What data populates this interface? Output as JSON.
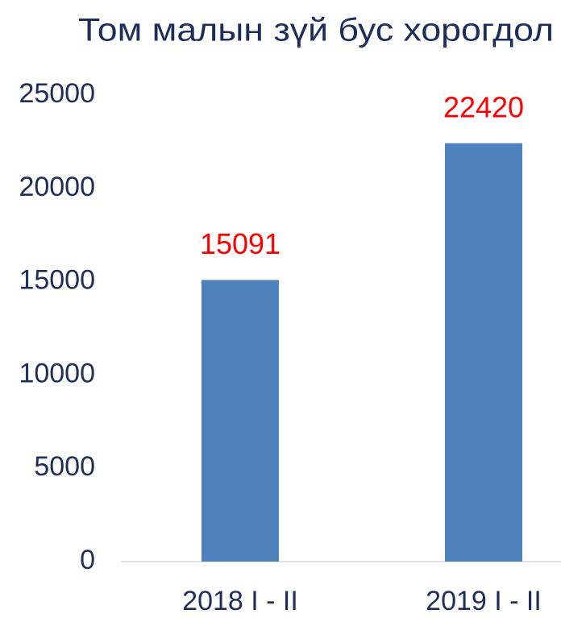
{
  "chart_data": {
    "type": "bar",
    "title": "Том малын зүй бус хорогдол",
    "categories": [
      "2018 I - II",
      "2019 I - II"
    ],
    "values": [
      15091,
      22420
    ],
    "color": "#4f81bd",
    "label_color": "#ff0000",
    "ylim": [
      0,
      25000
    ],
    "yticks": [
      0,
      5000,
      10000,
      15000,
      20000,
      25000
    ],
    "grid": false
  }
}
